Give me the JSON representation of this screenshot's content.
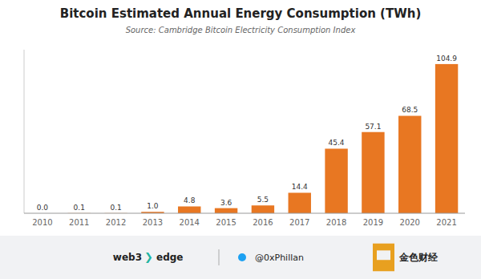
{
  "chart_data": {
    "type": "bar",
    "title": "Bitcoin Estimated Annual Energy Consumption (TWh)",
    "subtitle": "Source: Cambridge Bitcoin Electricity Consumption Index",
    "categories": [
      "2010",
      "2011",
      "2012",
      "2013",
      "2014",
      "2015",
      "2016",
      "2017",
      "2018",
      "2019",
      "2020",
      "2021"
    ],
    "values": [
      0.0,
      0.1,
      0.1,
      1.0,
      4.8,
      3.6,
      5.5,
      14.4,
      45.4,
      57.1,
      68.5,
      104.9
    ],
    "value_labels": [
      "0.0",
      "0.1",
      "0.1",
      "1.0",
      "4.8",
      "3.6",
      "5.5",
      "14.4",
      "45.4",
      "57.1",
      "68.5",
      "104.9"
    ],
    "color": "#E87722",
    "ylim": [
      0,
      115
    ],
    "data_labels": true,
    "tick_labels": "x",
    "grid": false,
    "annotations": [
      "web3",
      "❯",
      "edge",
      "@0xPhillan",
      "金色财经"
    ]
  }
}
